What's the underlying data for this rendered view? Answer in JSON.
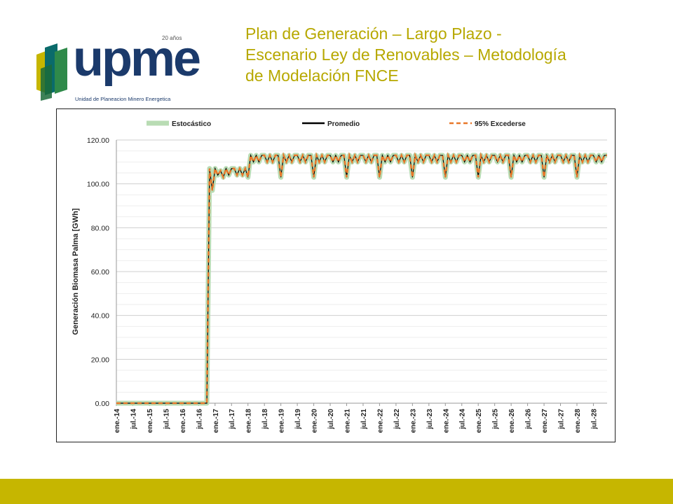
{
  "header": {
    "logo_text": "upme",
    "logo_anniversary": "20 años",
    "logo_subtitle": "Unidad de Planeacion Minero Energetica",
    "title_lines": [
      "Plan de Generación – Largo Plazo -",
      "Escenario Ley de Renovables – Metodología",
      "de Modelación FNCE"
    ]
  },
  "colors": {
    "title": "#b7a800",
    "logo_blue": "#1b3a6b",
    "footer_band": "#c6b600",
    "stochastic": "#b9dcb4",
    "average": "#000000",
    "p95": "#e8782a"
  },
  "chart_data": {
    "type": "line",
    "ylabel": "Generación Biomasa Palma [GWh]",
    "ylim": [
      0,
      120
    ],
    "yticks": [
      "0.00",
      "20.00",
      "40.00",
      "60.00",
      "80.00",
      "100.00",
      "120.00"
    ],
    "grid": true,
    "legend_position": "top",
    "legend": [
      "Estocástico",
      "Promedio",
      "95% Excederse"
    ],
    "x_labels": [
      "ene.-14",
      "jul.-14",
      "ene.-15",
      "jul.-15",
      "ene.-16",
      "jul.-16",
      "ene.-17",
      "jul.-17",
      "ene.-18",
      "jul.-18",
      "ene.-19",
      "jul.-19",
      "ene.-20",
      "jul.-20",
      "ene.-21",
      "jul.-21",
      "ene.-22",
      "jul.-22",
      "ene.-23",
      "jul.-23",
      "ene.-24",
      "jul.-24",
      "ene.-25",
      "jul.-25",
      "ene.-26",
      "jul.-26",
      "ene.-27",
      "jul.-27",
      "ene.-28",
      "jul.-28"
    ],
    "x_start": "2014-01",
    "x_end": "2028-12",
    "series": [
      {
        "name": "Estocástico",
        "style": "thick-light"
      },
      {
        "name": "Promedio",
        "style": "solid"
      },
      {
        "name": "95% Excederse",
        "style": "dashed"
      }
    ],
    "monthly_values": {
      "2014-01..2016-10": 0,
      "2016-11": 107,
      "2016-12": 97,
      "2017": [
        107,
        104,
        106,
        103,
        107,
        104,
        107,
        107,
        104,
        107,
        104,
        107
      ],
      "2018-2028_pattern": [
        103,
        113,
        110,
        113,
        110,
        113,
        113,
        110,
        113,
        110,
        113,
        113
      ]
    }
  }
}
